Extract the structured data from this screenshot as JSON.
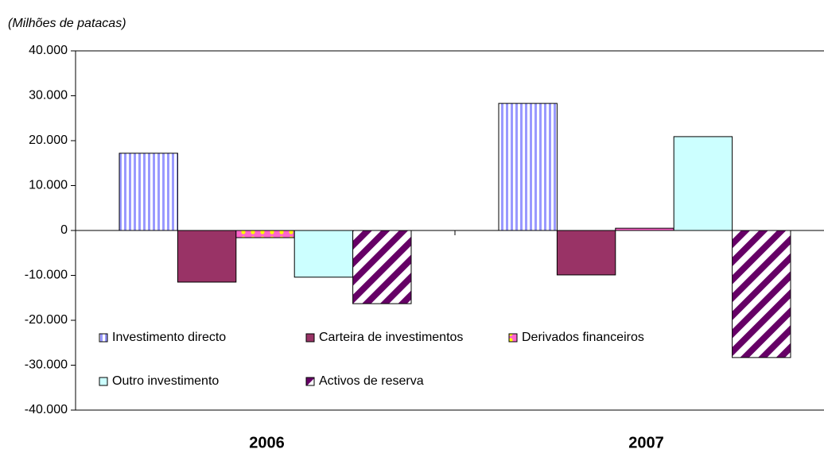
{
  "chart_data": {
    "type": "bar",
    "subtitle": "(Milhões de patacas)",
    "categories": [
      "2006",
      "2007"
    ],
    "series": [
      {
        "name": "Investimento directo",
        "color": "#9999ff",
        "values": [
          17200,
          28300
        ]
      },
      {
        "name": "Carteira de investimentos",
        "color": "#993366",
        "values": [
          -11500,
          -9900
        ]
      },
      {
        "name": "Derivados financeiros",
        "color": "#ff66cc",
        "values": [
          -1600,
          500
        ]
      },
      {
        "name": "Outro investimento",
        "color": "#ccffff",
        "values": [
          -10400,
          20900
        ]
      },
      {
        "name": "Activos de reserva",
        "color": "#660066",
        "values": [
          -16300,
          -28300
        ]
      }
    ],
    "ylim": [
      -40000,
      40000
    ],
    "yticks": [
      {
        "value": 40000,
        "label": "40.000"
      },
      {
        "value": 30000,
        "label": "30.000"
      },
      {
        "value": 20000,
        "label": "20.000"
      },
      {
        "value": 10000,
        "label": "10.000"
      },
      0,
      {
        "value": -10000,
        "label": "-10.000"
      },
      {
        "value": -20000,
        "label": "-20.000"
      },
      {
        "value": -30000,
        "label": "-30.000"
      },
      {
        "value": -40000,
        "label": "-40.000"
      }
    ],
    "grid": false
  }
}
